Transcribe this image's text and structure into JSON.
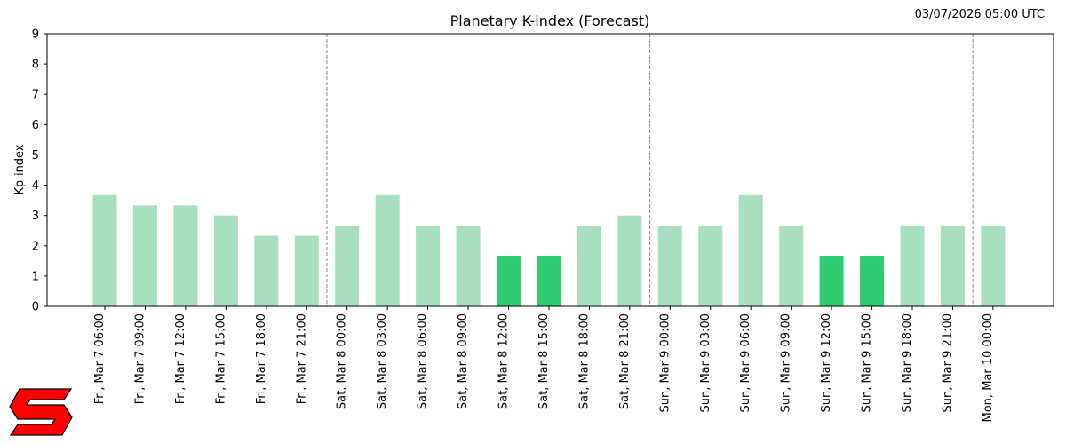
{
  "timestamp": "03/07/2026 05:00 UTC",
  "colors": {
    "bar_normal": "#a8dfbf",
    "bar_low": "#2ecc71",
    "axis": "#000000",
    "day_divider": "#888888",
    "logo_fill": "#ff0000",
    "logo_stroke": "#000000"
  },
  "logo_icon": "red-s-logo-icon",
  "chart_data": {
    "type": "bar",
    "title": "Planetary K-index (Forecast)",
    "xlabel": "",
    "ylabel": "Kp-index",
    "ylim": [
      0,
      9
    ],
    "yticks": [
      "0",
      "1",
      "2",
      "3",
      "4",
      "5",
      "6",
      "7",
      "8",
      "9"
    ],
    "grid": false,
    "legend": "none",
    "day_dividers_after_category": [
      "Fri, Mar 7 21:00",
      "Sat, Mar 8 21:00",
      "Sun, Mar 9 21:00"
    ],
    "categories": [
      "Fri, Mar 7 06:00",
      "Fri, Mar 7 09:00",
      "Fri, Mar 7 12:00",
      "Fri, Mar 7 15:00",
      "Fri, Mar 7 18:00",
      "Fri, Mar 7 21:00",
      "Sat, Mar 8 00:00",
      "Sat, Mar 8 03:00",
      "Sat, Mar 8 06:00",
      "Sat, Mar 8 09:00",
      "Sat, Mar 8 12:00",
      "Sat, Mar 8 15:00",
      "Sat, Mar 8 18:00",
      "Sat, Mar 8 21:00",
      "Sun, Mar 9 00:00",
      "Sun, Mar 9 03:00",
      "Sun, Mar 9 06:00",
      "Sun, Mar 9 09:00",
      "Sun, Mar 9 12:00",
      "Sun, Mar 9 15:00",
      "Sun, Mar 9 18:00",
      "Sun, Mar 9 21:00",
      "Mon, Mar 10 00:00"
    ],
    "values": [
      3.67,
      3.33,
      3.33,
      3.0,
      2.33,
      2.33,
      2.67,
      3.67,
      2.67,
      2.67,
      1.67,
      1.67,
      2.67,
      3.0,
      2.67,
      2.67,
      3.67,
      2.67,
      1.67,
      1.67,
      2.67,
      2.67,
      2.67
    ]
  }
}
